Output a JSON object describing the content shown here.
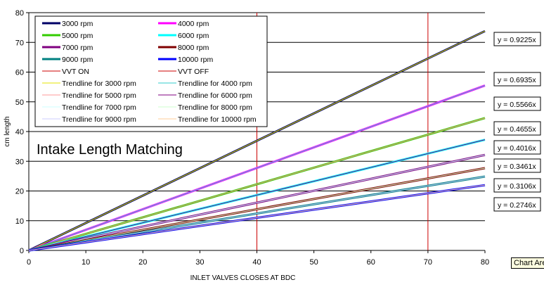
{
  "chart_data": {
    "type": "line",
    "title": "Intake Length Matching",
    "xlabel": "INLET VALVES CLOSES AT BDC",
    "ylabel": "cm length",
    "xlim": [
      0,
      80
    ],
    "ylim": [
      0,
      80
    ],
    "xticks": [
      0,
      10,
      20,
      30,
      40,
      50,
      60,
      70,
      80
    ],
    "yticks": [
      0,
      10,
      20,
      30,
      40,
      50,
      60,
      70,
      80
    ],
    "grid": "horizontal",
    "legend_position": "top-left",
    "x": [
      0,
      80
    ],
    "series": [
      {
        "name": "3000 rpm",
        "color": "#000066",
        "slope": 0.9225,
        "values": [
          0,
          73.8
        ]
      },
      {
        "name": "4000 rpm",
        "color": "#ff00ff",
        "slope": 0.6935,
        "values": [
          0,
          55.48
        ]
      },
      {
        "name": "5000 rpm",
        "color": "#33cc00",
        "slope": 0.5566,
        "values": [
          0,
          44.53
        ]
      },
      {
        "name": "6000 rpm",
        "color": "#00ffff",
        "slope": 0.4655,
        "values": [
          0,
          37.24
        ]
      },
      {
        "name": "7000 rpm",
        "color": "#800080",
        "slope": 0.4016,
        "values": [
          0,
          32.13
        ]
      },
      {
        "name": "8000 rpm",
        "color": "#800000",
        "slope": 0.3461,
        "values": [
          0,
          27.69
        ]
      },
      {
        "name": "9000 rpm",
        "color": "#008080",
        "slope": 0.3106,
        "values": [
          0,
          24.85
        ]
      },
      {
        "name": "10000 rpm",
        "color": "#0000ff",
        "slope": 0.2746,
        "values": [
          0,
          21.97
        ]
      }
    ],
    "vertical_lines": [
      {
        "name": "VVT ON",
        "x": 40,
        "color": "#cc0000"
      },
      {
        "name": "VVT OFF",
        "x": 70,
        "color": "#cc0000"
      }
    ],
    "legend": [
      {
        "label": "3000 rpm",
        "color": "#000066",
        "weight": 3
      },
      {
        "label": "4000 rpm",
        "color": "#ff00ff",
        "weight": 3
      },
      {
        "label": "5000 rpm",
        "color": "#33cc00",
        "weight": 3
      },
      {
        "label": "6000 rpm",
        "color": "#00ffff",
        "weight": 3
      },
      {
        "label": "7000 rpm",
        "color": "#800080",
        "weight": 3
      },
      {
        "label": "8000 rpm",
        "color": "#800000",
        "weight": 3
      },
      {
        "label": "9000 rpm",
        "color": "#008080",
        "weight": 3
      },
      {
        "label": "10000 rpm",
        "color": "#0000ff",
        "weight": 3
      },
      {
        "label": "VVT ON",
        "color": "#cc0000",
        "weight": 1
      },
      {
        "label": "VVT OFF",
        "color": "#cc0000",
        "weight": 1
      },
      {
        "label": "Trendline for 3000 rpm",
        "color": "#e6e600",
        "weight": 1
      },
      {
        "label": "Trendline for 4000 rpm",
        "color": "#33cccc",
        "weight": 1
      },
      {
        "label": "Trendline for 5000 rpm",
        "color": "#ff9999",
        "weight": 1
      },
      {
        "label": "Trendline for 6000 rpm",
        "color": "#800080",
        "weight": 1
      },
      {
        "label": "Trendline for 7000 rpm",
        "color": "#ccffff",
        "weight": 1
      },
      {
        "label": "Trendline for 8000 rpm",
        "color": "#ccffcc",
        "weight": 1
      },
      {
        "label": "Trendline for 9000 rpm",
        "color": "#ccccff",
        "weight": 1
      },
      {
        "label": "Trendline for 10000 rpm",
        "color": "#ffcc99",
        "weight": 1
      }
    ],
    "equations": [
      "y = 0.9225x",
      "y = 0.6935x",
      "y = 0.5566x",
      "y = 0.4655x",
      "y = 0.4016x",
      "y = 0.3461x",
      "y = 0.3106x",
      "y = 0.2746x"
    ],
    "tooltip": "Chart Area"
  }
}
